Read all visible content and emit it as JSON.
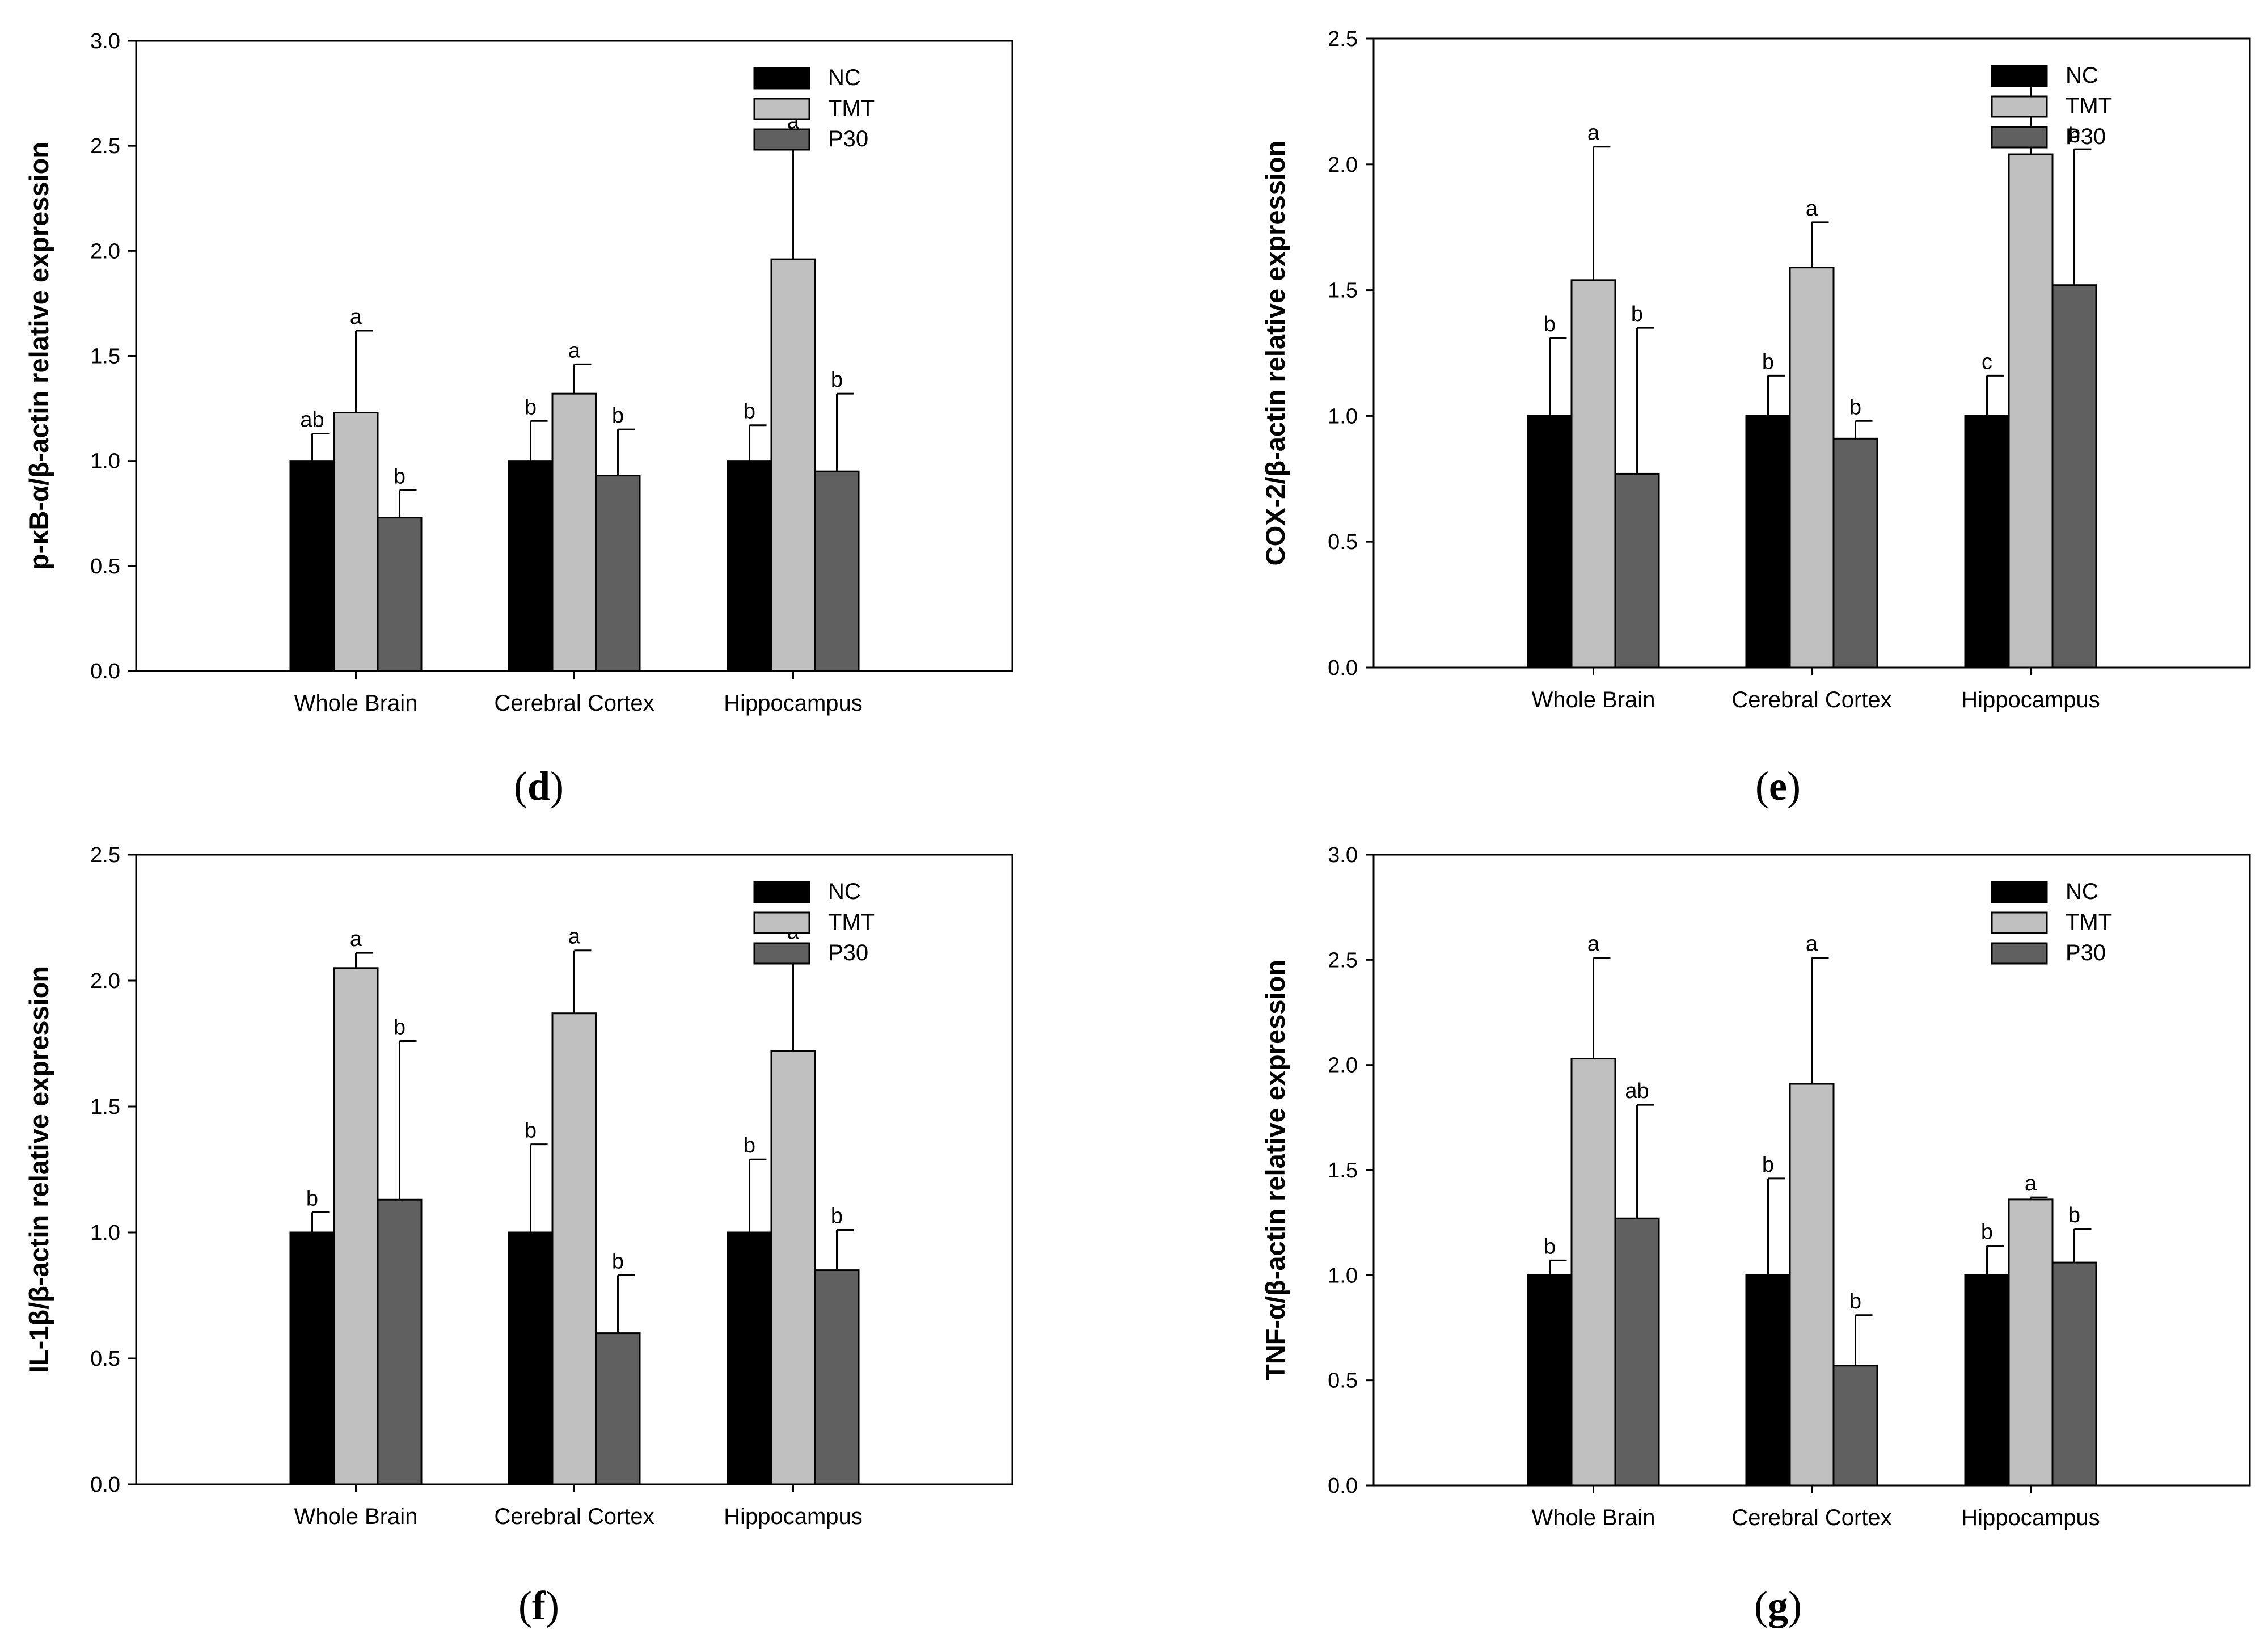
{
  "figure": {
    "groups": [
      "NC",
      "TMT",
      "P30"
    ],
    "colors": {
      "NC": "#000000",
      "TMT": "#c0c0c0",
      "P30": "#606060"
    }
  },
  "chart_data": [
    {
      "type": "bar",
      "panel": "d",
      "ylabel": "p-κB-α/β-actin relative expression",
      "ylim": [
        0,
        3.0
      ],
      "yticks": [
        "0.0",
        "0.5",
        "1.0",
        "1.5",
        "2.0",
        "2.5",
        "3.0"
      ],
      "categories": [
        "Whole Brain",
        "Cerebral Cortex",
        "Hippocampus"
      ],
      "legend": [
        "NC",
        "TMT",
        "P30"
      ],
      "series": [
        {
          "name": "NC",
          "values": [
            1.0,
            1.0,
            1.0
          ],
          "errors": [
            0.13,
            0.19,
            0.17
          ],
          "labels": [
            "ab",
            "b",
            "b"
          ]
        },
        {
          "name": "TMT",
          "values": [
            1.23,
            1.32,
            1.96
          ],
          "errors": [
            0.39,
            0.14,
            0.59
          ],
          "labels": [
            "a",
            "a",
            "a"
          ]
        },
        {
          "name": "P30",
          "values": [
            0.73,
            0.93,
            0.95
          ],
          "errors": [
            0.13,
            0.22,
            0.37
          ],
          "labels": [
            "b",
            "b",
            "b"
          ]
        }
      ]
    },
    {
      "type": "bar",
      "panel": "e",
      "ylabel": "COX-2/β-actin relative expression",
      "ylim": [
        0,
        2.5
      ],
      "yticks": [
        "0.0",
        "0.5",
        "1.0",
        "1.5",
        "2.0",
        "2.5"
      ],
      "categories": [
        "Whole Brain",
        "Cerebral Cortex",
        "Hippocampus"
      ],
      "legend": [
        "NC",
        "TMT",
        "P30"
      ],
      "series": [
        {
          "name": "NC",
          "values": [
            1.0,
            1.0,
            1.0
          ],
          "errors": [
            0.31,
            0.16,
            0.16
          ],
          "labels": [
            "b",
            "b",
            "c"
          ]
        },
        {
          "name": "TMT",
          "values": [
            1.54,
            1.59,
            2.04
          ],
          "errors": [
            0.53,
            0.18,
            0.28
          ],
          "labels": [
            "a",
            "a",
            "a"
          ]
        },
        {
          "name": "P30",
          "values": [
            0.77,
            0.91,
            1.52
          ],
          "errors": [
            0.58,
            0.07,
            0.54
          ],
          "labels": [
            "b",
            "b",
            "b"
          ]
        }
      ]
    },
    {
      "type": "bar",
      "panel": "f",
      "ylabel": "IL-1β/β-actin relative expression",
      "ylim": [
        0,
        2.5
      ],
      "yticks": [
        "0.0",
        "0.5",
        "1.0",
        "1.5",
        "2.0",
        "2.5"
      ],
      "categories": [
        "Whole Brain",
        "Cerebral Cortex",
        "Hippocampus"
      ],
      "legend": [
        "NC",
        "TMT",
        "P30"
      ],
      "series": [
        {
          "name": "NC",
          "values": [
            1.0,
            1.0,
            1.0
          ],
          "errors": [
            0.08,
            0.35,
            0.29
          ],
          "labels": [
            "b",
            "b",
            "b"
          ]
        },
        {
          "name": "TMT",
          "values": [
            2.05,
            1.87,
            1.72
          ],
          "errors": [
            0.06,
            0.25,
            0.42
          ],
          "labels": [
            "a",
            "a",
            "a"
          ]
        },
        {
          "name": "P30",
          "values": [
            1.13,
            0.6,
            0.85
          ],
          "errors": [
            0.63,
            0.23,
            0.16
          ],
          "labels": [
            "b",
            "b",
            "b"
          ]
        }
      ]
    },
    {
      "type": "bar",
      "panel": "g",
      "ylabel": "TNF-α/β-actin relative expression",
      "ylim": [
        0,
        3.0
      ],
      "yticks": [
        "0.0",
        "0.5",
        "1.0",
        "1.5",
        "2.0",
        "2.5",
        "3.0"
      ],
      "categories": [
        "Whole Brain",
        "Cerebral Cortex",
        "Hippocampus"
      ],
      "legend": [
        "NC",
        "TMT",
        "P30"
      ],
      "series": [
        {
          "name": "NC",
          "values": [
            1.0,
            1.0,
            1.0
          ],
          "errors": [
            0.07,
            0.46,
            0.14
          ],
          "labels": [
            "b",
            "b",
            "b"
          ]
        },
        {
          "name": "TMT",
          "values": [
            2.03,
            1.91,
            1.36
          ],
          "errors": [
            0.48,
            0.6,
            0.01
          ],
          "labels": [
            "a",
            "a",
            "a"
          ]
        },
        {
          "name": "P30",
          "values": [
            1.27,
            0.57,
            1.06
          ],
          "errors": [
            0.54,
            0.24,
            0.16
          ],
          "labels": [
            "ab",
            "b",
            "b"
          ]
        }
      ]
    }
  ],
  "captions": [
    "d",
    "e",
    "f",
    "g"
  ]
}
